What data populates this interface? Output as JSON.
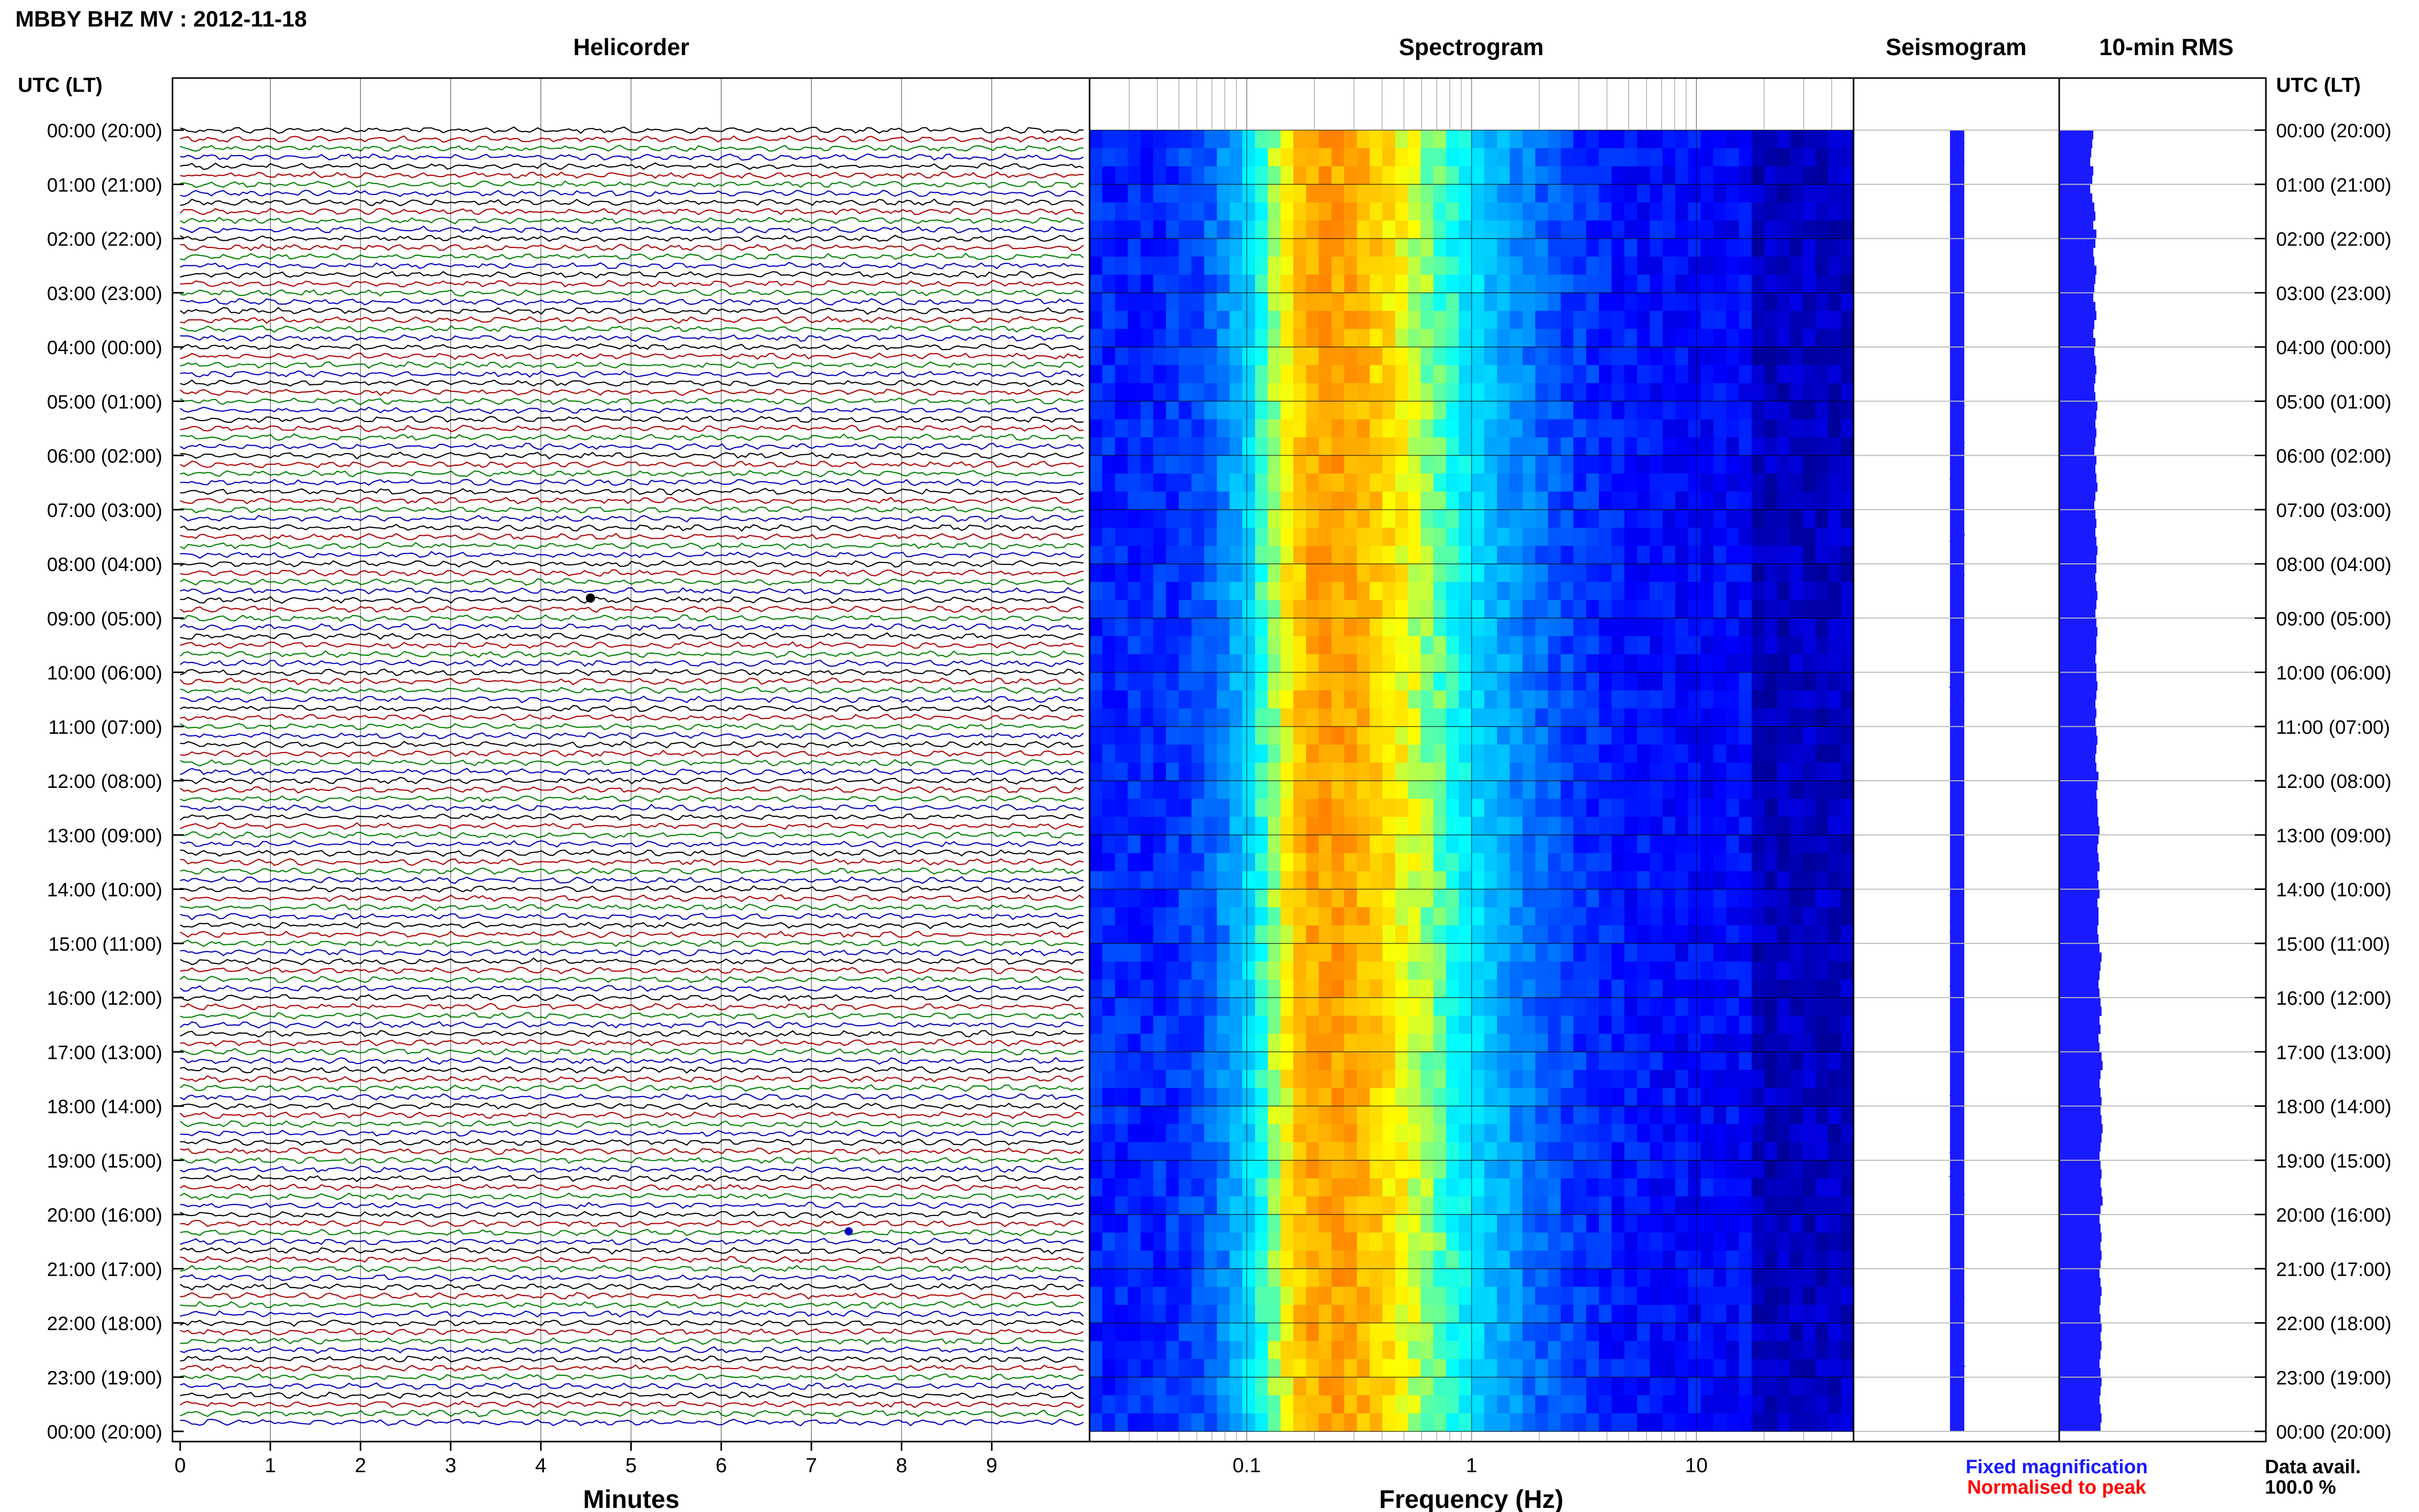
{
  "header": {
    "title": "MBBY BHZ MV : 2012-11-18",
    "left_axis_label": "UTC (LT)",
    "right_axis_label": "UTC (LT)"
  },
  "panels": {
    "helicorder": "Helicorder",
    "spectrogram": "Spectrogram",
    "seismogram": "Seismogram",
    "rms": "10-min RMS"
  },
  "axes": {
    "minutes_label": "Minutes",
    "frequency_label": "Frequency (Hz)"
  },
  "legend": {
    "fixed": "Fixed magnification",
    "normalised": "Normalised to peak",
    "fixed_color": "#1a1aff",
    "normalised_color": "#ff0000"
  },
  "data_avail": {
    "label": "Data avail.",
    "value": "100.0 %"
  },
  "colors": {
    "trace_cycle": [
      "#000000",
      "#b00000",
      "#008000",
      "#0000c0"
    ],
    "rms_bar": "#1a1aff",
    "spectrogram_ramp": [
      "#00007f",
      "#0000ff",
      "#0090ff",
      "#00ffff",
      "#ffff00",
      "#ff8000"
    ]
  },
  "chart_data": {
    "type": "helicorder",
    "time_labels": [
      "00:00 (20:00)",
      "01:00 (21:00)",
      "02:00 (22:00)",
      "03:00 (23:00)",
      "04:00 (00:00)",
      "05:00 (01:00)",
      "06:00 (02:00)",
      "07:00 (03:00)",
      "08:00 (04:00)",
      "09:00 (05:00)",
      "10:00 (06:00)",
      "11:00 (07:00)",
      "12:00 (08:00)",
      "13:00 (09:00)",
      "14:00 (10:00)",
      "15:00 (11:00)",
      "16:00 (12:00)",
      "17:00 (13:00)",
      "18:00 (14:00)",
      "19:00 (15:00)",
      "20:00 (16:00)",
      "21:00 (17:00)",
      "22:00 (18:00)",
      "23:00 (19:00)",
      "00:00 (20:00)"
    ],
    "minute_ticks": [
      "0",
      "1",
      "2",
      "3",
      "4",
      "5",
      "6",
      "7",
      "8",
      "9"
    ],
    "minutes_range": [
      0,
      10
    ],
    "frequency_ticks": [
      {
        "label": "0.1",
        "hz": 0.1
      },
      {
        "label": "1",
        "hz": 1
      },
      {
        "label": "10",
        "hz": 10
      }
    ],
    "frequency_range_hz": [
      0.02,
      50
    ],
    "spectral_peak_hz": 0.22,
    "traces_per_hour": 6,
    "rms_values": [
      3.3,
      3.2,
      3.1,
      3.0,
      3.3,
      3.2,
      3.0,
      3.2,
      3.4,
      3.5,
      3.3,
      3.6,
      3.5,
      3.3,
      3.4,
      3.6,
      3.5,
      3.4,
      3.3,
      3.5,
      3.6,
      3.4,
      3.3,
      3.5,
      3.4,
      3.5,
      3.6,
      3.5,
      3.4,
      3.5,
      3.7,
      3.6,
      3.5,
      3.6,
      3.5,
      3.4,
      3.6,
      3.5,
      3.6,
      3.7,
      3.5,
      3.4,
      3.5,
      3.6,
      3.5,
      3.6,
      3.7,
      3.6,
      3.6,
      3.5,
      3.6,
      3.7,
      3.6,
      3.5,
      3.6,
      3.7,
      3.6,
      3.6,
      3.5,
      3.6,
      3.6,
      3.7,
      3.6,
      3.5,
      3.6,
      3.5,
      3.6,
      3.7,
      3.6,
      3.5,
      3.6,
      3.8,
      3.7,
      3.6,
      3.7,
      3.7,
      3.8,
      3.9,
      3.8,
      3.7,
      3.8,
      3.9,
      3.7,
      3.8,
      3.9,
      3.7,
      3.8,
      3.8,
      3.7,
      3.8,
      3.9,
      4.1,
      4.0,
      3.9,
      3.8,
      3.9,
      4.0,
      4.1,
      3.9,
      4.0,
      3.8,
      3.9,
      4.1,
      4.2,
      4.0,
      3.9,
      4.0,
      4.1,
      4.0,
      4.1,
      4.2,
      4.1,
      4.0,
      3.9,
      4.0,
      4.1,
      4.0,
      4.1,
      4.2,
      4.0,
      3.9,
      4.0,
      4.1,
      4.0,
      4.1,
      4.0,
      3.9,
      4.0,
      4.1,
      4.0,
      3.9,
      4.0,
      4.1,
      4.0,
      4.1,
      4.0,
      3.9,
      4.0,
      4.1,
      4.0,
      3.9,
      4.0,
      4.1,
      4.0
    ],
    "rms_unit": "arbitrary",
    "rms_range": [
      0,
      10
    ]
  }
}
